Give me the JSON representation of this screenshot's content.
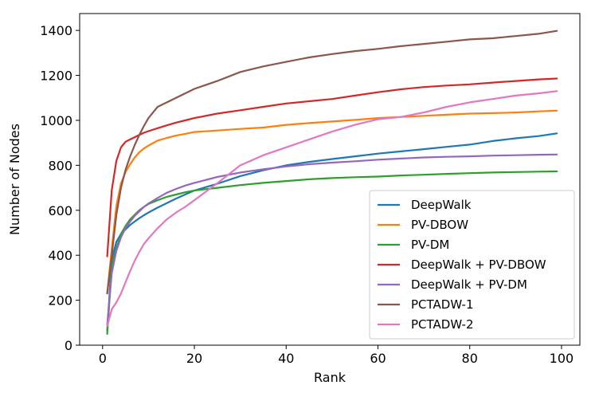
{
  "chart_data": {
    "type": "line",
    "title": "",
    "xlabel": "Rank",
    "ylabel": "Number of Nodes",
    "xlim": [
      -5,
      104
    ],
    "ylim": [
      0,
      1475
    ],
    "xticks": [
      0,
      20,
      40,
      60,
      80,
      100
    ],
    "yticks": [
      0,
      200,
      400,
      600,
      800,
      1000,
      1200,
      1400
    ],
    "legend_position": "lower-right",
    "grid": false,
    "x": [
      1,
      2,
      3,
      4,
      5,
      6,
      7,
      8,
      9,
      10,
      12,
      14,
      16,
      18,
      20,
      25,
      30,
      35,
      40,
      45,
      50,
      55,
      60,
      65,
      70,
      75,
      80,
      85,
      90,
      95,
      99
    ],
    "series": [
      {
        "name": "DeepWalk",
        "color": "#1f77b4",
        "values": [
          65,
          380,
          460,
          495,
          515,
          535,
          550,
          565,
          578,
          590,
          612,
          632,
          652,
          670,
          688,
          718,
          752,
          778,
          800,
          815,
          828,
          840,
          852,
          862,
          872,
          882,
          892,
          908,
          920,
          930,
          942
        ]
      },
      {
        "name": "PV-DBOW",
        "color": "#ff7f0e",
        "values": [
          230,
          430,
          620,
          720,
          770,
          805,
          835,
          858,
          875,
          888,
          910,
          922,
          932,
          940,
          948,
          955,
          962,
          968,
          980,
          988,
          995,
          1002,
          1010,
          1015,
          1020,
          1025,
          1030,
          1032,
          1035,
          1040,
          1043
        ]
      },
      {
        "name": "PV-DM",
        "color": "#2ca02c",
        "values": [
          50,
          350,
          430,
          495,
          530,
          560,
          580,
          600,
          615,
          628,
          645,
          660,
          670,
          680,
          688,
          700,
          712,
          722,
          730,
          738,
          743,
          747,
          750,
          755,
          758,
          762,
          765,
          768,
          770,
          772,
          773
        ]
      },
      {
        "name": "DeepWalk + PV-DBOW",
        "color": "#d62728",
        "values": [
          395,
          690,
          820,
          880,
          905,
          915,
          925,
          935,
          945,
          952,
          965,
          978,
          990,
          1000,
          1010,
          1030,
          1045,
          1060,
          1075,
          1085,
          1095,
          1110,
          1125,
          1138,
          1148,
          1155,
          1160,
          1168,
          1175,
          1182,
          1186
        ]
      },
      {
        "name": "DeepWalk + PV-DM",
        "color": "#9467bd",
        "values": [
          90,
          320,
          420,
          480,
          520,
          550,
          575,
          595,
          615,
          630,
          655,
          678,
          695,
          710,
          722,
          748,
          768,
          782,
          795,
          805,
          812,
          818,
          825,
          830,
          835,
          838,
          840,
          843,
          845,
          847,
          848
        ]
      },
      {
        "name": "PCTADW-1",
        "color": "#8c564b",
        "values": [
          230,
          400,
          580,
          700,
          780,
          840,
          890,
          935,
          975,
          1010,
          1060,
          1080,
          1100,
          1120,
          1140,
          1175,
          1215,
          1240,
          1260,
          1280,
          1295,
          1308,
          1318,
          1330,
          1340,
          1350,
          1360,
          1365,
          1375,
          1385,
          1398
        ]
      },
      {
        "name": "PCTADW-2",
        "color": "#e377c2",
        "values": [
          85,
          160,
          190,
          230,
          280,
          330,
          375,
          415,
          450,
          475,
          520,
          560,
          590,
          615,
          645,
          720,
          800,
          845,
          880,
          915,
          950,
          980,
          1005,
          1015,
          1035,
          1060,
          1080,
          1095,
          1110,
          1120,
          1130
        ]
      }
    ]
  }
}
